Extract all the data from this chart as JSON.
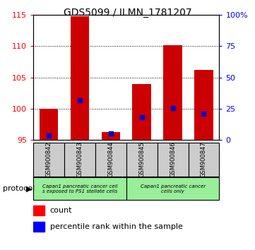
{
  "title": "GDS5099 / ILMN_1781207",
  "samples": [
    "GSM900842",
    "GSM900843",
    "GSM900844",
    "GSM900845",
    "GSM900846",
    "GSM900847"
  ],
  "count_values": [
    100.0,
    114.8,
    96.3,
    104.0,
    110.2,
    106.2
  ],
  "percentile_values": [
    3.5,
    32.0,
    5.0,
    18.0,
    25.5,
    21.0
  ],
  "y_min": 95,
  "y_max": 115,
  "y_ticks_left": [
    95,
    100,
    105,
    110,
    115
  ],
  "y_ticks_right": [
    0,
    25,
    50,
    75,
    100
  ],
  "bar_color": "#cc0000",
  "percentile_color": "#0000cc",
  "legend_count_label": "count",
  "legend_percentile_label": "percentile rank within the sample",
  "protocol_label": "protocol",
  "proto1_label": "Capan1 pancreatic cancer cell\ns exposed to PS1 stellate cells",
  "proto2_label": "Capan1 pancreatic cancer\ncells only",
  "proto_color": "#99ee99",
  "sample_box_color": "#cccccc"
}
